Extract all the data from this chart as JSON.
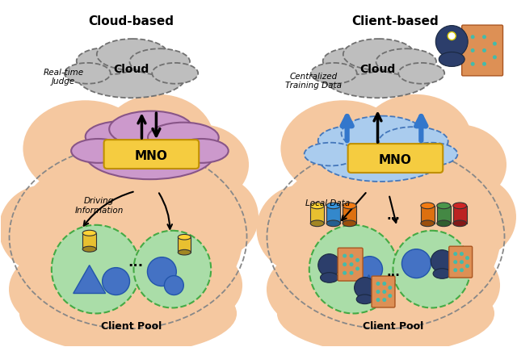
{
  "title_left": "Cloud-based",
  "title_right": "Client-based",
  "cloud_label": "Cloud",
  "mno_label": "MNO",
  "realtime_label": "Real-time\nJudge",
  "centralized_label": "Centralized\nTraining Data",
  "driving_info_label": "Driving\nInformation",
  "local_data_label": "Local Data",
  "client_pool_label": "Client Pool",
  "dots": "...",
  "bg_color": "#FFFFFF",
  "salmon_color": "#F5C8A0",
  "gray_fill": "#BEBEBE",
  "gray_edge": "#707070",
  "purple_fill": "#CC99CC",
  "purple_edge": "#885588",
  "blue_fill": "#AACCEE",
  "blue_edge": "#4477BB",
  "mno_fill": "#F5CC40",
  "mno_edge": "#C09000",
  "green_fill": "#AADDA8",
  "green_edge": "#44AA44",
  "arrow_black": "#111111",
  "arrow_blue": "#3377CC",
  "dark_navy": "#2C3E6B",
  "cyl_yellow": "#E8C030",
  "cyl_blue": "#3388CC",
  "cyl_orange": "#DD7010",
  "cyl_green": "#448844",
  "cyl_red": "#BB2222",
  "shape_blue": "#4472C4",
  "orange_card": "#DD9055",
  "teal_dot": "#44BBAA"
}
